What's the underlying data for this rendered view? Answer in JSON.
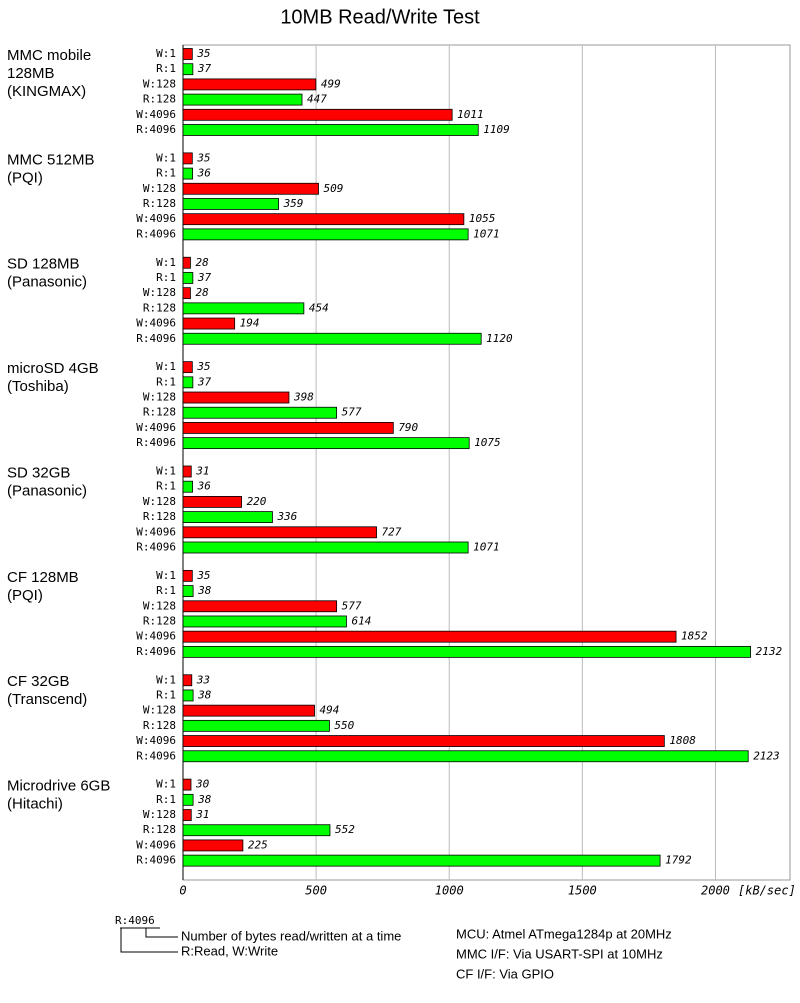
{
  "chart_data": {
    "type": "grouped-hbar",
    "title": "10MB Read/Write Test",
    "categories": [
      [
        "MMC mobile",
        "128MB",
        "(KINGMAX)"
      ],
      [
        "MMC 512MB",
        "(PQI)"
      ],
      [
        "SD 128MB",
        "(Panasonic)"
      ],
      [
        "microSD 4GB",
        "(Toshiba)"
      ],
      [
        "SD 32GB",
        "(Panasonic)"
      ],
      [
        "CF 128MB",
        "(PQI)"
      ],
      [
        "CF 32GB",
        "(Transcend)"
      ],
      [
        "Microdrive 6GB",
        "(Hitachi)"
      ]
    ],
    "series": [
      {
        "name": "W:1",
        "color": "#ff0000",
        "values": [
          35,
          35,
          28,
          35,
          31,
          35,
          33,
          30
        ]
      },
      {
        "name": "R:1",
        "color": "#00ff00",
        "values": [
          37,
          36,
          37,
          37,
          36,
          38,
          38,
          38
        ]
      },
      {
        "name": "W:128",
        "color": "#ff0000",
        "values": [
          499,
          509,
          28,
          398,
          220,
          577,
          494,
          31
        ]
      },
      {
        "name": "R:128",
        "color": "#00ff00",
        "values": [
          447,
          359,
          454,
          577,
          336,
          614,
          550,
          552
        ]
      },
      {
        "name": "W:4096",
        "color": "#ff0000",
        "values": [
          1011,
          1055,
          194,
          790,
          727,
          1852,
          1808,
          225
        ]
      },
      {
        "name": "R:4096",
        "color": "#00ff00",
        "values": [
          1109,
          1071,
          1120,
          1075,
          1071,
          2132,
          2123,
          1792
        ]
      }
    ],
    "xlim": [
      0,
      2280
    ],
    "xticks": [
      0,
      500,
      1000,
      1500,
      2000
    ],
    "x_label": "[kB/sec]",
    "grid": true,
    "legend_note": {
      "example": "R:4096",
      "bytes": "Number of bytes read/written at a time",
      "mode": "R:Read, W:Write"
    },
    "notes": [
      "MCU: Atmel ATmega1284p at 20MHz",
      "MMC I/F: Via USART-SPI at 10MHz",
      "CF I/F: Via GPIO"
    ]
  }
}
